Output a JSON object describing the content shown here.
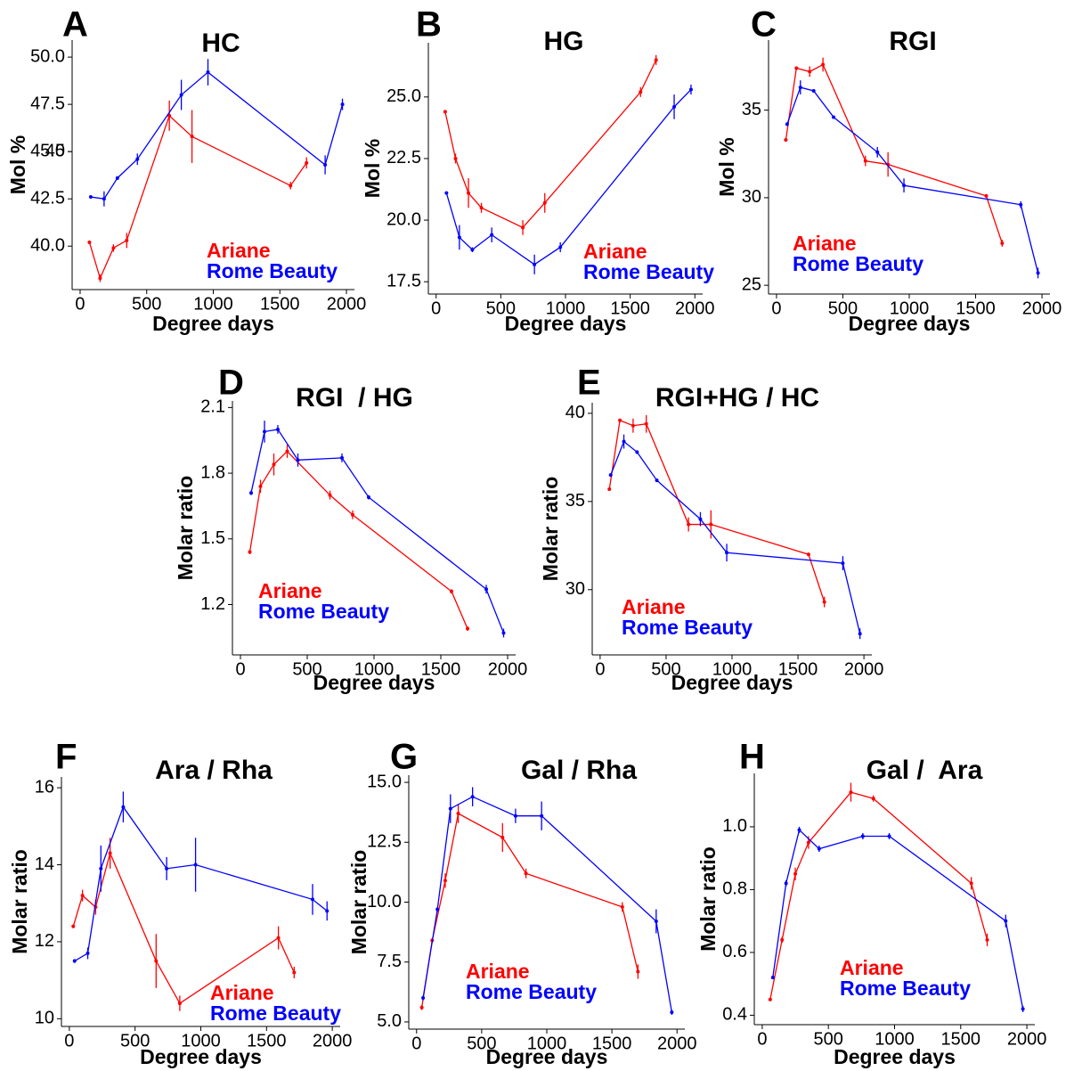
{
  "chart_data": [
    {
      "type": "line",
      "panel": "A",
      "title": "HC",
      "x_label": "Degree days",
      "y_label": "Mol %",
      "xlim": [
        -60,
        2060
      ],
      "ylim": [
        37.7,
        50.9
      ],
      "xticks": [
        0,
        500,
        1000,
        1500,
        2000
      ],
      "yticks": [
        {
          "value": 40,
          "label": "40.0"
        },
        42.5,
        45,
        {
          "value": 45,
          "label": "45.0"
        },
        47.5,
        {
          "value": 50,
          "label": "50.0"
        }
      ],
      "series": [
        {
          "name": "Ariane",
          "color": "#ff0000",
          "x": [
            70,
            150,
            250,
            350,
            670,
            840,
            1580,
            1700
          ],
          "values": [
            40.2,
            38.3,
            39.9,
            40.3,
            46.9,
            45.8,
            43.2,
            44.4
          ],
          "errors": [
            0.1,
            0.2,
            0.2,
            0.4,
            0.8,
            1.4,
            0.2,
            0.3
          ]
        },
        {
          "name": "Rome Beauty",
          "color": "#0000ff",
          "x": [
            80,
            180,
            280,
            430,
            760,
            960,
            1840,
            1970
          ],
          "values": [
            42.6,
            42.5,
            43.6,
            44.6,
            48.0,
            49.2,
            44.3,
            47.5
          ],
          "errors": [
            0.05,
            0.4,
            0.1,
            0.3,
            0.8,
            0.7,
            0.5,
            0.3
          ]
        }
      ]
    },
    {
      "type": "line",
      "panel": "B",
      "title": "HG",
      "x_label": "Degree days",
      "y_label": "Mol %",
      "xlim": [
        -60,
        2060
      ],
      "ylim": [
        17.0,
        27.2
      ],
      "xticks": [
        0,
        500,
        1000,
        1500,
        2000
      ],
      "yticks": [
        17.5,
        {
          "value": 20,
          "label": "20.0"
        },
        22.5,
        {
          "value": 25,
          "label": "25.0"
        }
      ],
      "series": [
        {
          "name": "Ariane",
          "color": "#ff0000",
          "x": [
            70,
            150,
            250,
            350,
            670,
            840,
            1580,
            1700
          ],
          "values": [
            24.4,
            22.5,
            21.1,
            20.5,
            19.7,
            20.7,
            25.2,
            26.5
          ],
          "errors": [
            0.05,
            0.2,
            0.6,
            0.2,
            0.3,
            0.4,
            0.2,
            0.2
          ]
        },
        {
          "name": "Rome Beauty",
          "color": "#0000ff",
          "x": [
            80,
            180,
            280,
            430,
            760,
            960,
            1840,
            1970
          ],
          "values": [
            21.1,
            19.3,
            18.8,
            19.4,
            18.2,
            18.9,
            24.6,
            25.3
          ],
          "errors": [
            0.05,
            0.5,
            0.1,
            0.3,
            0.4,
            0.2,
            0.5,
            0.2
          ]
        }
      ]
    },
    {
      "type": "line",
      "panel": "C",
      "title": "RGI",
      "x_label": "Degree days",
      "y_label": "Mol %",
      "xlim": [
        -60,
        2060
      ],
      "ylim": [
        24.5,
        39
      ],
      "xticks": [
        0,
        500,
        1000,
        1500,
        2000
      ],
      "yticks": [
        25,
        30,
        35
      ],
      "series": [
        {
          "name": "Ariane",
          "color": "#ff0000",
          "x": [
            70,
            150,
            250,
            350,
            670,
            840,
            1580,
            1700
          ],
          "values": [
            33.3,
            37.4,
            37.2,
            37.6,
            32.1,
            31.9,
            30.1,
            27.4
          ],
          "errors": [
            0.1,
            0.1,
            0.3,
            0.4,
            0.3,
            0.7,
            0.1,
            0.2
          ]
        },
        {
          "name": "Rome Beauty",
          "color": "#0000ff",
          "x": [
            80,
            180,
            280,
            430,
            760,
            960,
            1840,
            1970
          ],
          "values": [
            34.2,
            36.3,
            36.1,
            34.6,
            32.6,
            30.7,
            29.6,
            25.7
          ],
          "errors": [
            0.1,
            0.4,
            0.1,
            0.1,
            0.3,
            0.4,
            0.2,
            0.3
          ]
        }
      ]
    },
    {
      "type": "line",
      "panel": "D",
      "title": "RGI  / HG",
      "x_label": "Degree days",
      "y_label": "Molar ratio",
      "xlim": [
        -60,
        2060
      ],
      "ylim": [
        0.97,
        2.13
      ],
      "xticks": [
        0,
        500,
        1000,
        1500,
        2000
      ],
      "yticks": [
        1.2,
        1.5,
        1.8,
        2.1
      ],
      "series": [
        {
          "name": "Ariane",
          "color": "#ff0000",
          "x": [
            70,
            150,
            250,
            350,
            670,
            840,
            1580,
            1700
          ],
          "values": [
            1.44,
            1.74,
            1.84,
            1.9,
            1.7,
            1.61,
            1.26,
            1.09
          ],
          "errors": [
            0.01,
            0.03,
            0.05,
            0.03,
            0.02,
            0.02,
            0.01,
            0.01
          ]
        },
        {
          "name": "Rome Beauty",
          "color": "#0000ff",
          "x": [
            80,
            180,
            280,
            430,
            760,
            960,
            1840,
            1970
          ],
          "values": [
            1.71,
            1.99,
            2.0,
            1.86,
            1.87,
            1.69,
            1.27,
            1.07
          ],
          "errors": [
            0.01,
            0.05,
            0.02,
            0.03,
            0.02,
            0.01,
            0.02,
            0.02
          ]
        }
      ]
    },
    {
      "type": "line",
      "panel": "E",
      "title": "RGI+HG / HC",
      "x_label": "Degree days",
      "y_label": "Molar ratio",
      "xlim": [
        -60,
        2060
      ],
      "ylim": [
        26.3,
        40.6
      ],
      "xticks": [
        0,
        500,
        1000,
        1500,
        2000
      ],
      "yticks": [
        30,
        35,
        40
      ],
      "series": [
        {
          "name": "Ariane",
          "color": "#ff0000",
          "x": [
            70,
            150,
            250,
            350,
            670,
            840,
            1580,
            1700
          ],
          "values": [
            35.7,
            39.6,
            39.3,
            39.4,
            33.7,
            33.7,
            32.0,
            29.3
          ],
          "errors": [
            0.1,
            0.1,
            0.4,
            0.5,
            0.4,
            0.8,
            0.1,
            0.3
          ]
        },
        {
          "name": "Rome Beauty",
          "color": "#0000ff",
          "x": [
            80,
            180,
            280,
            430,
            760,
            960,
            1840,
            1970
          ],
          "values": [
            36.5,
            38.4,
            37.8,
            36.2,
            34.0,
            32.1,
            31.5,
            27.5
          ],
          "errors": [
            0.1,
            0.4,
            0.1,
            0.1,
            0.4,
            0.5,
            0.4,
            0.3
          ]
        }
      ]
    },
    {
      "type": "line",
      "panel": "F",
      "title": "Ara / Rha",
      "x_label": "Degree days",
      "y_label": "Molar ratio",
      "xlim": [
        -60,
        2060
      ],
      "ylim": [
        9.8,
        16.28
      ],
      "xticks": [
        0,
        500,
        1000,
        1500,
        2000
      ],
      "yticks": [
        10,
        12,
        14,
        16
      ],
      "series": [
        {
          "name": "Ariane",
          "color": "#ff0000",
          "x": [
            30,
            100,
            200,
            310,
            660,
            840,
            1590,
            1710
          ],
          "values": [
            12.4,
            13.2,
            12.9,
            14.3,
            11.5,
            10.4,
            12.1,
            11.2
          ],
          "errors": [
            0.05,
            0.15,
            0.2,
            0.4,
            0.7,
            0.2,
            0.3,
            0.15
          ]
        },
        {
          "name": "Rome Beauty",
          "color": "#0000ff",
          "x": [
            40,
            140,
            240,
            410,
            740,
            960,
            1850,
            1960
          ],
          "values": [
            11.5,
            11.7,
            13.9,
            15.5,
            13.9,
            14.0,
            13.1,
            12.8
          ],
          "errors": [
            0.05,
            0.15,
            0.6,
            0.4,
            0.3,
            0.7,
            0.4,
            0.25
          ]
        }
      ]
    },
    {
      "type": "line",
      "panel": "G",
      "title": "Gal / Rha",
      "x_label": "Degree days",
      "y_label": "Molar ratio",
      "xlim": [
        -60,
        2060
      ],
      "ylim": [
        4.7,
        15.3
      ],
      "xticks": [
        0,
        500,
        1000,
        1500,
        2000
      ],
      "yticks": [
        {
          "value": 5,
          "label": "5.0"
        },
        7.5,
        {
          "value": 10,
          "label": "10.0"
        },
        12.5,
        {
          "value": 15,
          "label": "15.0"
        }
      ],
      "series": [
        {
          "name": "Ariane",
          "color": "#ff0000",
          "x": [
            40,
            120,
            220,
            320,
            660,
            840,
            1580,
            1700
          ],
          "values": [
            5.6,
            8.4,
            10.9,
            13.7,
            12.7,
            11.2,
            9.8,
            7.1
          ],
          "errors": [
            0.1,
            0.1,
            0.3,
            0.4,
            0.6,
            0.2,
            0.2,
            0.3
          ]
        },
        {
          "name": "Rome Beauty",
          "color": "#0000ff",
          "x": [
            50,
            160,
            260,
            430,
            760,
            960,
            1840,
            1960
          ],
          "values": [
            6.0,
            9.7,
            13.9,
            14.4,
            13.6,
            13.6,
            9.2,
            5.4
          ],
          "errors": [
            0.1,
            0.1,
            0.6,
            0.4,
            0.3,
            0.6,
            0.5,
            0.1
          ]
        }
      ]
    },
    {
      "type": "line",
      "panel": "H",
      "title": "Gal /  Ara",
      "x_label": "Degree days",
      "y_label": "Molar ratio",
      "xlim": [
        -60,
        2060
      ],
      "ylim": [
        0.37,
        1.17
      ],
      "xticks": [
        0,
        500,
        1000,
        1500,
        2000
      ],
      "yticks": [
        0.4,
        0.6,
        0.8,
        {
          "value": 1,
          "label": "1.0"
        }
      ],
      "series": [
        {
          "name": "Ariane",
          "color": "#ff0000",
          "x": [
            60,
            150,
            250,
            350,
            670,
            840,
            1580,
            1700
          ],
          "values": [
            0.45,
            0.64,
            0.85,
            0.95,
            1.11,
            1.09,
            0.82,
            0.64
          ],
          "errors": [
            0.005,
            0.01,
            0.02,
            0.02,
            0.03,
            0.01,
            0.02,
            0.02
          ]
        },
        {
          "name": "Rome Beauty",
          "color": "#0000ff",
          "x": [
            80,
            180,
            280,
            430,
            760,
            960,
            1840,
            1970
          ],
          "values": [
            0.52,
            0.82,
            0.99,
            0.93,
            0.97,
            0.97,
            0.7,
            0.42
          ],
          "errors": [
            0.005,
            0.01,
            0.01,
            0.01,
            0.01,
            0.01,
            0.02,
            0.01
          ]
        }
      ]
    }
  ]
}
